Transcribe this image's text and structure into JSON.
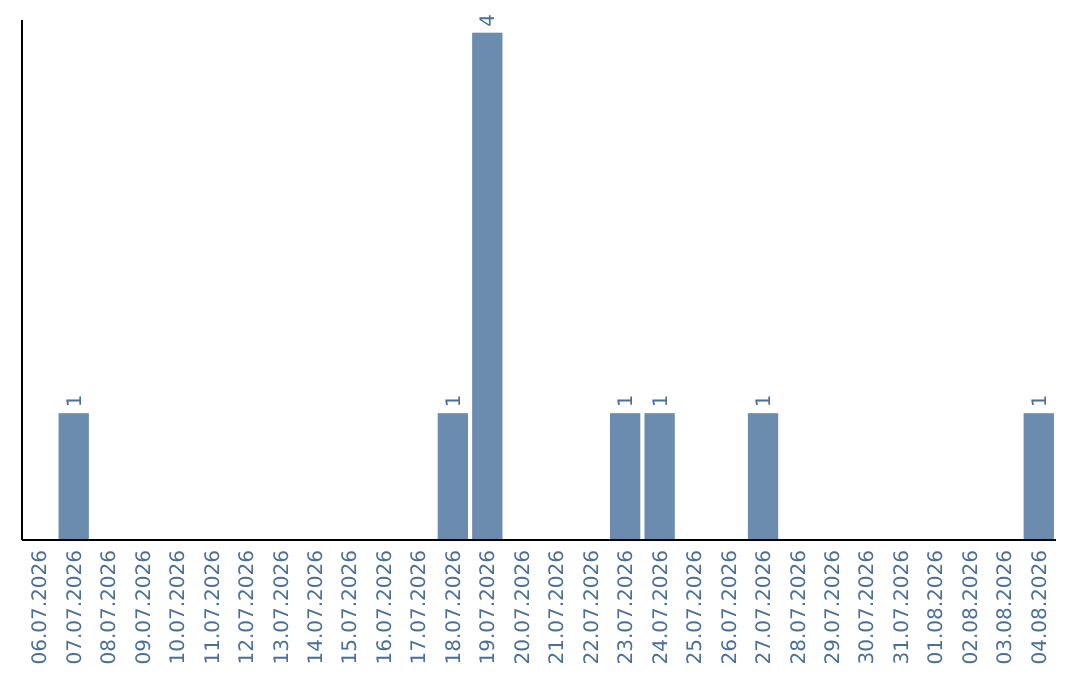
{
  "chart_data": {
    "type": "bar",
    "categories": [
      "06.07.2026",
      "07.07.2026",
      "08.07.2026",
      "09.07.2026",
      "10.07.2026",
      "11.07.2026",
      "12.07.2026",
      "13.07.2026",
      "14.07.2026",
      "15.07.2026",
      "16.07.2026",
      "17.07.2026",
      "18.07.2026",
      "19.07.2026",
      "20.07.2026",
      "21.07.2026",
      "22.07.2026",
      "23.07.2026",
      "24.07.2026",
      "25.07.2026",
      "26.07.2026",
      "27.07.2026",
      "28.07.2026",
      "29.07.2026",
      "30.07.2026",
      "31.07.2026",
      "01.08.2026",
      "02.08.2026",
      "03.08.2026",
      "04.08.2026"
    ],
    "values": [
      0,
      1,
      0,
      0,
      0,
      0,
      0,
      0,
      0,
      0,
      0,
      0,
      1,
      4,
      0,
      0,
      0,
      1,
      1,
      0,
      0,
      1,
      0,
      0,
      0,
      0,
      0,
      0,
      0,
      1
    ],
    "value_labels": [
      null,
      "1",
      null,
      null,
      null,
      null,
      null,
      null,
      null,
      null,
      null,
      null,
      "1",
      "4",
      null,
      null,
      null,
      "1",
      "1",
      null,
      null,
      "1",
      null,
      null,
      null,
      null,
      null,
      null,
      null,
      "1"
    ],
    "color": "#6b8cae",
    "ylim": [
      0,
      4.1
    ],
    "tick_labels": "x"
  }
}
